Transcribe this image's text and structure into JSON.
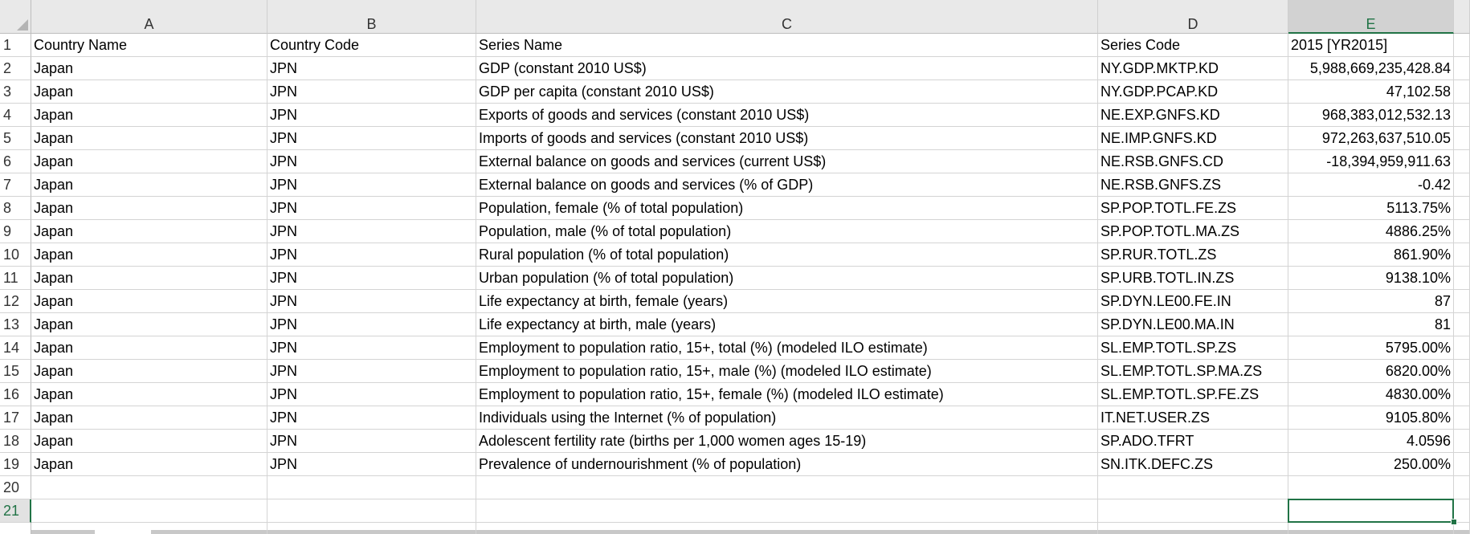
{
  "columns": [
    "A",
    "B",
    "C",
    "D",
    "E"
  ],
  "row_numbers": [
    1,
    2,
    3,
    4,
    5,
    6,
    7,
    8,
    9,
    10,
    11,
    12,
    13,
    14,
    15,
    16,
    17,
    18,
    19,
    20,
    21
  ],
  "table": {
    "rows": [
      [
        "Country Name",
        "Country Code",
        "Series Name",
        "Series Code",
        "2015 [YR2015]"
      ],
      [
        "Japan",
        "JPN",
        "GDP (constant 2010 US$)",
        "NY.GDP.MKTP.KD",
        "5,988,669,235,428.84"
      ],
      [
        "Japan",
        "JPN",
        "GDP per capita (constant 2010 US$)",
        "NY.GDP.PCAP.KD",
        "47,102.58"
      ],
      [
        "Japan",
        "JPN",
        "Exports of goods and services (constant 2010 US$)",
        "NE.EXP.GNFS.KD",
        "968,383,012,532.13"
      ],
      [
        "Japan",
        "JPN",
        "Imports of goods and services (constant 2010 US$)",
        "NE.IMP.GNFS.KD",
        "972,263,637,510.05"
      ],
      [
        "Japan",
        "JPN",
        "External balance on goods and services (current US$)",
        "NE.RSB.GNFS.CD",
        "-18,394,959,911.63"
      ],
      [
        "Japan",
        "JPN",
        "External balance on goods and services (% of GDP)",
        "NE.RSB.GNFS.ZS",
        "-0.42"
      ],
      [
        "Japan",
        "JPN",
        "Population, female (% of total population)",
        "SP.POP.TOTL.FE.ZS",
        "5113.75%"
      ],
      [
        "Japan",
        "JPN",
        "Population, male (% of total population)",
        "SP.POP.TOTL.MA.ZS",
        "4886.25%"
      ],
      [
        "Japan",
        "JPN",
        "Rural population (% of total population)",
        "SP.RUR.TOTL.ZS",
        "861.90%"
      ],
      [
        "Japan",
        "JPN",
        "Urban population (% of total population)",
        "SP.URB.TOTL.IN.ZS",
        "9138.10%"
      ],
      [
        "Japan",
        "JPN",
        "Life expectancy at birth, female (years)",
        "SP.DYN.LE00.FE.IN",
        "87"
      ],
      [
        "Japan",
        "JPN",
        "Life expectancy at birth, male (years)",
        "SP.DYN.LE00.MA.IN",
        "81"
      ],
      [
        "Japan",
        "JPN",
        "Employment to population ratio, 15+, total (%) (modeled ILO estimate)",
        "SL.EMP.TOTL.SP.ZS",
        "5795.00%"
      ],
      [
        "Japan",
        "JPN",
        "Employment to population ratio, 15+, male (%) (modeled ILO estimate)",
        "SL.EMP.TOTL.SP.MA.ZS",
        "6820.00%"
      ],
      [
        "Japan",
        "JPN",
        "Employment to population ratio, 15+, female (%) (modeled ILO estimate)",
        "SL.EMP.TOTL.SP.FE.ZS",
        "4830.00%"
      ],
      [
        "Japan",
        "JPN",
        "Individuals using the Internet (% of population)",
        "IT.NET.USER.ZS",
        "9105.80%"
      ],
      [
        "Japan",
        "JPN",
        "Adolescent fertility rate (births per 1,000 women ages 15-19)",
        "SP.ADO.TFRT",
        "4.0596"
      ],
      [
        "Japan",
        "JPN",
        "Prevalence of undernourishment (% of population)",
        "SN.ITK.DEFC.ZS",
        "250.00%"
      ]
    ]
  }
}
